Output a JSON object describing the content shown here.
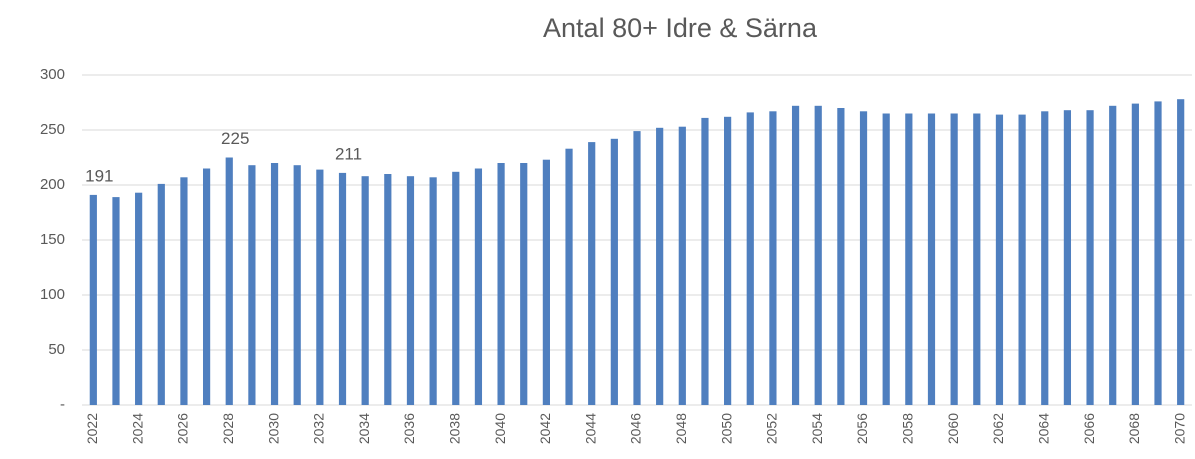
{
  "chart_data": {
    "type": "bar",
    "title": "Antal 80+ Idre & Särna",
    "categories": [
      "2022",
      null,
      "2024",
      null,
      "2026",
      null,
      "2028",
      null,
      "2030",
      null,
      "2032",
      null,
      "2034",
      null,
      "2036",
      null,
      "2038",
      null,
      "2040",
      null,
      "2042",
      null,
      "2044",
      null,
      "2046",
      null,
      "2048",
      null,
      "2050",
      null,
      "2052",
      null,
      "2054",
      null,
      "2056",
      null,
      "2058",
      null,
      "2060",
      null,
      "2062",
      null,
      "2064",
      null,
      "2066",
      null,
      "2068",
      null,
      "2070"
    ],
    "values": [
      191,
      189,
      193,
      201,
      207,
      215,
      225,
      218,
      220,
      218,
      214,
      211,
      208,
      210,
      208,
      207,
      212,
      215,
      220,
      220,
      223,
      233,
      239,
      242,
      249,
      252,
      253,
      261,
      262,
      266,
      267,
      272,
      272,
      270,
      267,
      265,
      265,
      265,
      265,
      265,
      264,
      264,
      267,
      268,
      268,
      272,
      274,
      276,
      278
    ],
    "value_labels": [
      "191",
      null,
      null,
      null,
      null,
      null,
      "225",
      null,
      null,
      null,
      null,
      "211",
      null,
      null,
      null,
      null,
      null,
      null,
      null,
      null,
      null,
      null,
      null,
      null,
      null,
      null,
      null,
      null,
      null,
      null,
      null,
      null,
      null,
      null,
      null,
      null,
      null,
      null,
      null,
      null,
      null,
      null,
      null,
      null,
      null,
      null,
      null,
      null,
      null
    ],
    "color": "#4f7fbf",
    "ylim": [
      0,
      300
    ],
    "yticks": [
      {
        "value": 0,
        "label": "-"
      },
      50,
      100,
      150,
      200,
      250,
      300
    ],
    "grid": true
  }
}
